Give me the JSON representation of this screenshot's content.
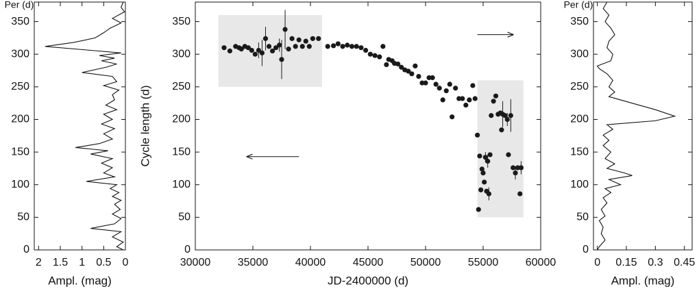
{
  "chart_data": [
    {
      "type": "line",
      "orientation": "horizontal",
      "x_label": "Per (d)",
      "y_label": "Ampl. (mag)",
      "color": "#111111",
      "xlim": [
        0,
        380
      ],
      "xticks": [
        0,
        50,
        100,
        150,
        200,
        250,
        300,
        350
      ],
      "ylim": [
        2.1,
        0
      ],
      "yticks": [
        2,
        1.5,
        1,
        0.5,
        0
      ],
      "x": [
        380,
        372,
        365,
        355,
        348,
        340,
        333,
        325,
        318,
        312,
        306,
        302,
        298,
        294,
        290,
        285,
        280,
        272,
        266,
        258,
        252,
        245,
        238,
        230,
        222,
        215,
        208,
        200,
        193,
        186,
        178,
        170,
        163,
        157,
        152,
        147,
        140,
        133,
        126,
        118,
        112,
        105,
        100,
        94,
        88,
        82,
        76,
        70,
        62,
        55,
        48,
        40,
        33,
        28,
        20,
        12,
        5,
        0
      ],
      "values": [
        0.05,
        0.1,
        0.02,
        0.3,
        0.1,
        0.35,
        0.5,
        0.7,
        1.2,
        1.85,
        0.8,
        0.1,
        0.6,
        0.25,
        0.55,
        0.2,
        0.45,
        1.0,
        0.3,
        0.2,
        0.5,
        0.15,
        0.3,
        0.25,
        0.45,
        0.2,
        0.5,
        0.3,
        0.55,
        0.25,
        0.5,
        0.3,
        0.6,
        1.15,
        0.4,
        0.8,
        0.3,
        0.55,
        0.3,
        0.5,
        0.25,
        0.9,
        0.2,
        0.35,
        0.15,
        0.3,
        0.1,
        0.25,
        0.12,
        0.3,
        0.1,
        0.25,
        0.8,
        0.1,
        0.3,
        0.05,
        0.2,
        0.05
      ]
    },
    {
      "type": "scatter",
      "x_label": "JD-2400000 (d)",
      "y_label": "Cycle length (d)",
      "color": "#1a1a1a",
      "shade_color": "#e8e8e8",
      "xlim": [
        30000,
        60000
      ],
      "xticks": [
        30000,
        35000,
        40000,
        45000,
        50000,
        55000,
        60000
      ],
      "ylim": [
        0,
        380
      ],
      "yticks": [
        0,
        50,
        100,
        150,
        200,
        250,
        300,
        350
      ],
      "shaded_regions": [
        {
          "xlim": [
            32000,
            41000
          ],
          "ylim": [
            250,
            360
          ]
        },
        {
          "xlim": [
            54500,
            58500
          ],
          "ylim": [
            50,
            260
          ]
        }
      ],
      "arrows": [
        {
          "x": [
            39000,
            34500
          ],
          "y": [
            143,
            143
          ]
        },
        {
          "x": [
            54500,
            57600
          ],
          "y": [
            330,
            330
          ]
        }
      ],
      "x": [
        32500,
        33000,
        33500,
        33800,
        34000,
        34300,
        34600,
        34900,
        35200,
        35500,
        35800,
        36100,
        36400,
        36700,
        37000,
        37300,
        37500,
        37800,
        38100,
        38400,
        38700,
        39000,
        39300,
        39600,
        39900,
        40200,
        40700,
        41500,
        42000,
        42400,
        42800,
        43200,
        43600,
        44000,
        44400,
        44800,
        45200,
        45600,
        46000,
        46300,
        46600,
        46800,
        47100,
        47300,
        47600,
        47900,
        48200,
        48500,
        48800,
        49100,
        49400,
        49700,
        50000,
        50300,
        50600,
        50900,
        51200,
        51500,
        51800,
        52100,
        52300,
        52600,
        52900,
        53200,
        53500,
        53800,
        54100,
        54300,
        54500,
        54600,
        54700,
        54800,
        54900,
        55000,
        55100,
        55200,
        55300,
        55400,
        55500,
        55600,
        55700,
        55900,
        56100,
        56300,
        56500,
        56600,
        56700,
        56900,
        57100,
        57200,
        57400,
        57600,
        57800,
        58000,
        58200,
        58300
      ],
      "values": [
        310,
        305,
        312,
        310,
        308,
        312,
        310,
        306,
        300,
        306,
        302,
        324,
        312,
        305,
        310,
        314,
        292,
        338,
        308,
        324,
        312,
        322,
        312,
        320,
        312,
        324,
        324,
        312,
        313,
        316,
        312,
        314,
        312,
        312,
        310,
        306,
        300,
        298,
        296,
        312,
        284,
        292,
        290,
        286,
        285,
        280,
        276,
        274,
        270,
        282,
        266,
        256,
        256,
        264,
        264,
        254,
        248,
        230,
        244,
        254,
        204,
        248,
        232,
        232,
        222,
        230,
        252,
        232,
        176,
        62,
        144,
        92,
        124,
        118,
        104,
        142,
        90,
        136,
        86,
        146,
        206,
        228,
        236,
        208,
        210,
        184,
        208,
        206,
        200,
        146,
        206,
        126,
        118,
        126,
        86,
        126
      ],
      "errors": [
        null,
        null,
        null,
        null,
        null,
        null,
        null,
        null,
        null,
        12,
        20,
        18,
        null,
        null,
        null,
        10,
        30,
        30,
        null,
        null,
        null,
        null,
        null,
        null,
        null,
        null,
        null,
        null,
        null,
        null,
        null,
        null,
        null,
        null,
        null,
        null,
        null,
        null,
        null,
        null,
        null,
        null,
        null,
        null,
        null,
        null,
        null,
        null,
        null,
        null,
        null,
        null,
        null,
        null,
        null,
        null,
        null,
        null,
        null,
        null,
        null,
        null,
        null,
        null,
        null,
        null,
        null,
        null,
        null,
        null,
        null,
        null,
        null,
        null,
        null,
        8,
        null,
        10,
        10,
        null,
        null,
        null,
        null,
        null,
        null,
        null,
        20,
        null,
        10,
        null,
        25,
        null,
        10,
        null,
        null,
        10
      ]
    },
    {
      "type": "line",
      "orientation": "horizontal",
      "x_label": "Per (d)",
      "y_label": "Ampl. (mag)",
      "color": "#111111",
      "xlim": [
        0,
        380
      ],
      "xticks": [
        0,
        50,
        100,
        150,
        200,
        250,
        300,
        350
      ],
      "ylim": [
        -0.02,
        0.49
      ],
      "yticks": [
        0,
        0.15,
        0.3,
        0.45
      ],
      "x": [
        380,
        370,
        360,
        350,
        340,
        330,
        320,
        310,
        300,
        290,
        282,
        278,
        270,
        260,
        250,
        242,
        235,
        225,
        215,
        205,
        198,
        192,
        185,
        176,
        168,
        160,
        150,
        140,
        132,
        125,
        118,
        114,
        108,
        100,
        94,
        88,
        80,
        72,
        62,
        52,
        45,
        35,
        25,
        15,
        5,
        0
      ],
      "values": [
        0.05,
        0.03,
        0.06,
        0.04,
        0.07,
        0.09,
        0.06,
        0.05,
        0.08,
        0.07,
        0.0,
        0.01,
        0.05,
        0.08,
        0.06,
        0.09,
        0.06,
        0.18,
        0.3,
        0.4,
        0.3,
        0.05,
        0.08,
        0.03,
        0.06,
        0.03,
        0.07,
        0.04,
        0.09,
        0.05,
        0.14,
        0.18,
        0.06,
        0.12,
        0.04,
        0.07,
        0.03,
        0.05,
        0.02,
        0.04,
        0.01,
        0.03,
        0.02,
        0.04,
        0.01,
        0.0
      ]
    }
  ]
}
